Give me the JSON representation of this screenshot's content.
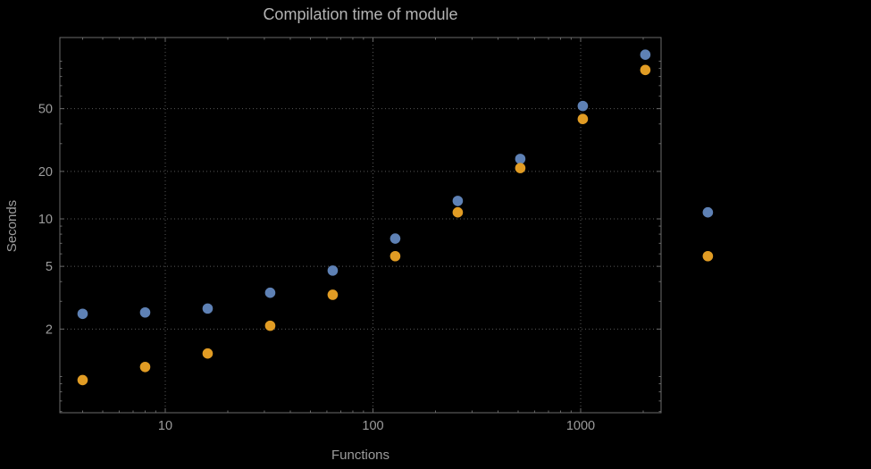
{
  "colors": {
    "background": "#000000",
    "frame": "#6a6a6a",
    "grid": "#585858",
    "title": "#b4b4b4",
    "axis_label": "#9c9c9c",
    "tick_label": "#9c9c9c",
    "series_blue": "#5e81b5",
    "series_orange": "#e19c24"
  },
  "chart_data": {
    "type": "scatter",
    "title": "Compilation time of module",
    "xlabel": "Functions",
    "ylabel": "Seconds",
    "x_scale": "log",
    "y_scale": "log",
    "xlim": [
      3.1,
      2450
    ],
    "ylim": [
      0.59,
      141
    ],
    "x_ticks": [
      10,
      100,
      1000
    ],
    "y_ticks": [
      2,
      5,
      10,
      20,
      50
    ],
    "grid": "dotted",
    "legend": "none",
    "series": [
      {
        "name": "blue",
        "color": "#5e81b5",
        "points": [
          [
            4,
            2.5
          ],
          [
            8,
            2.55
          ],
          [
            16,
            2.7
          ],
          [
            32,
            3.4
          ],
          [
            64,
            4.7
          ],
          [
            128,
            7.5
          ],
          [
            256,
            13
          ],
          [
            512,
            24
          ],
          [
            1024,
            52
          ],
          [
            2048,
            110
          ],
          [
            4096,
            11
          ]
        ]
      },
      {
        "name": "orange",
        "color": "#e19c24",
        "points": [
          [
            4,
            0.95
          ],
          [
            8,
            1.15
          ],
          [
            16,
            1.4
          ],
          [
            32,
            2.1
          ],
          [
            64,
            3.3
          ],
          [
            128,
            5.8
          ],
          [
            256,
            11
          ],
          [
            512,
            21
          ],
          [
            1024,
            43
          ],
          [
            2048,
            88
          ],
          [
            4096,
            5.8
          ]
        ]
      }
    ]
  }
}
